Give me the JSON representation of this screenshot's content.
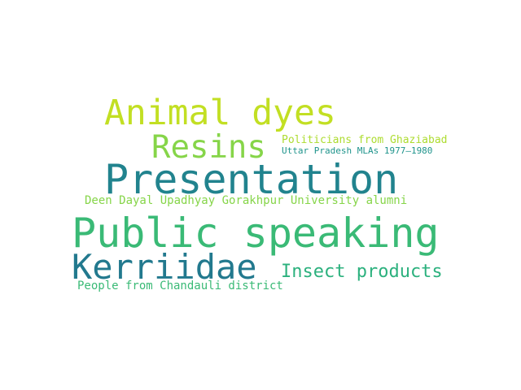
{
  "word_cloud": {
    "words": [
      {
        "text": "Animal dyes",
        "color": "#c2df23"
      },
      {
        "text": "Resins",
        "color": "#86d549"
      },
      {
        "text": "Politicians from Ghaziabad",
        "color": "#addc30"
      },
      {
        "text": "Uttar Pradesh MLAs 1977–1980",
        "color": "#1f948c"
      },
      {
        "text": "Presentation",
        "color": "#21838e"
      },
      {
        "text": "Deen Dayal Upadhyay Gorakhpur University alumni",
        "color": "#86d549"
      },
      {
        "text": "Public speaking",
        "color": "#3aba76"
      },
      {
        "text": "Kerriidae",
        "color": "#22798e"
      },
      {
        "text": "Insect products",
        "color": "#2cb17e"
      },
      {
        "text": "People from Chandauli district",
        "color": "#3aba76"
      }
    ]
  }
}
